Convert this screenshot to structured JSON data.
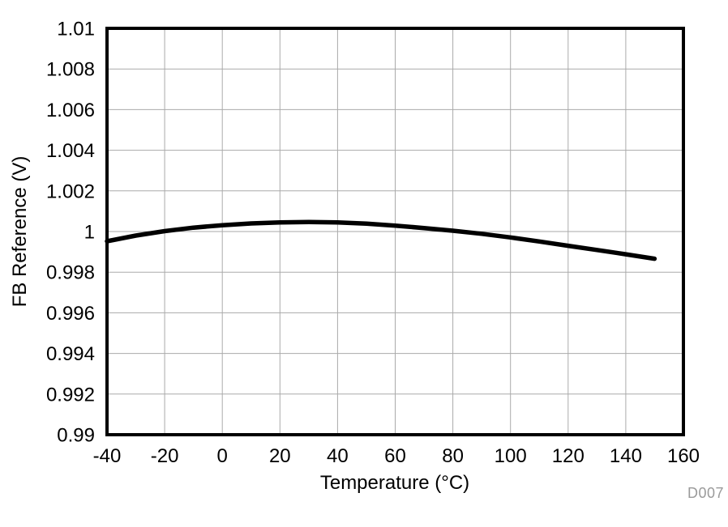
{
  "chart_data": {
    "type": "line",
    "title": "",
    "xlabel": "Temperature (°C)",
    "ylabel": "FB Reference (V)",
    "xlim": [
      -40,
      160
    ],
    "ylim": [
      0.99,
      1.01
    ],
    "xticks": [
      -40,
      -20,
      0,
      20,
      40,
      60,
      80,
      100,
      120,
      140,
      160
    ],
    "xtick_labels": [
      "-40",
      "-20",
      "0",
      "20",
      "40",
      "60",
      "80",
      "100",
      "120",
      "140",
      "160"
    ],
    "yticks": [
      0.99,
      0.992,
      0.994,
      0.996,
      0.998,
      1.0,
      1.002,
      1.004,
      1.006,
      1.008,
      1.01
    ],
    "ytick_labels": [
      "0.99",
      "0.992",
      "0.994",
      "0.996",
      "0.998",
      "1",
      "1.002",
      "1.004",
      "1.006",
      "1.008",
      "1.01"
    ],
    "grid": true,
    "legend": "none",
    "watermark": "D007",
    "series": [
      {
        "name": "FB Reference",
        "x": [
          -40,
          -30,
          -20,
          -10,
          0,
          10,
          20,
          30,
          40,
          50,
          60,
          70,
          80,
          90,
          100,
          110,
          120,
          130,
          140,
          150
        ],
        "y": [
          0.99952,
          0.9998,
          1.00002,
          1.00019,
          1.00031,
          1.0004,
          1.00045,
          1.00047,
          1.00045,
          1.00039,
          1.00029,
          1.00017,
          1.00004,
          0.99989,
          0.99971,
          0.99951,
          0.9993,
          0.99909,
          0.99888,
          0.99866
        ]
      }
    ]
  },
  "colors": {
    "background": "#ffffff",
    "frame": "#000000",
    "grid": "#aaaaaa",
    "curve": "#000000",
    "tick_text": "#000000",
    "watermark_text": "#9a9a9a"
  }
}
